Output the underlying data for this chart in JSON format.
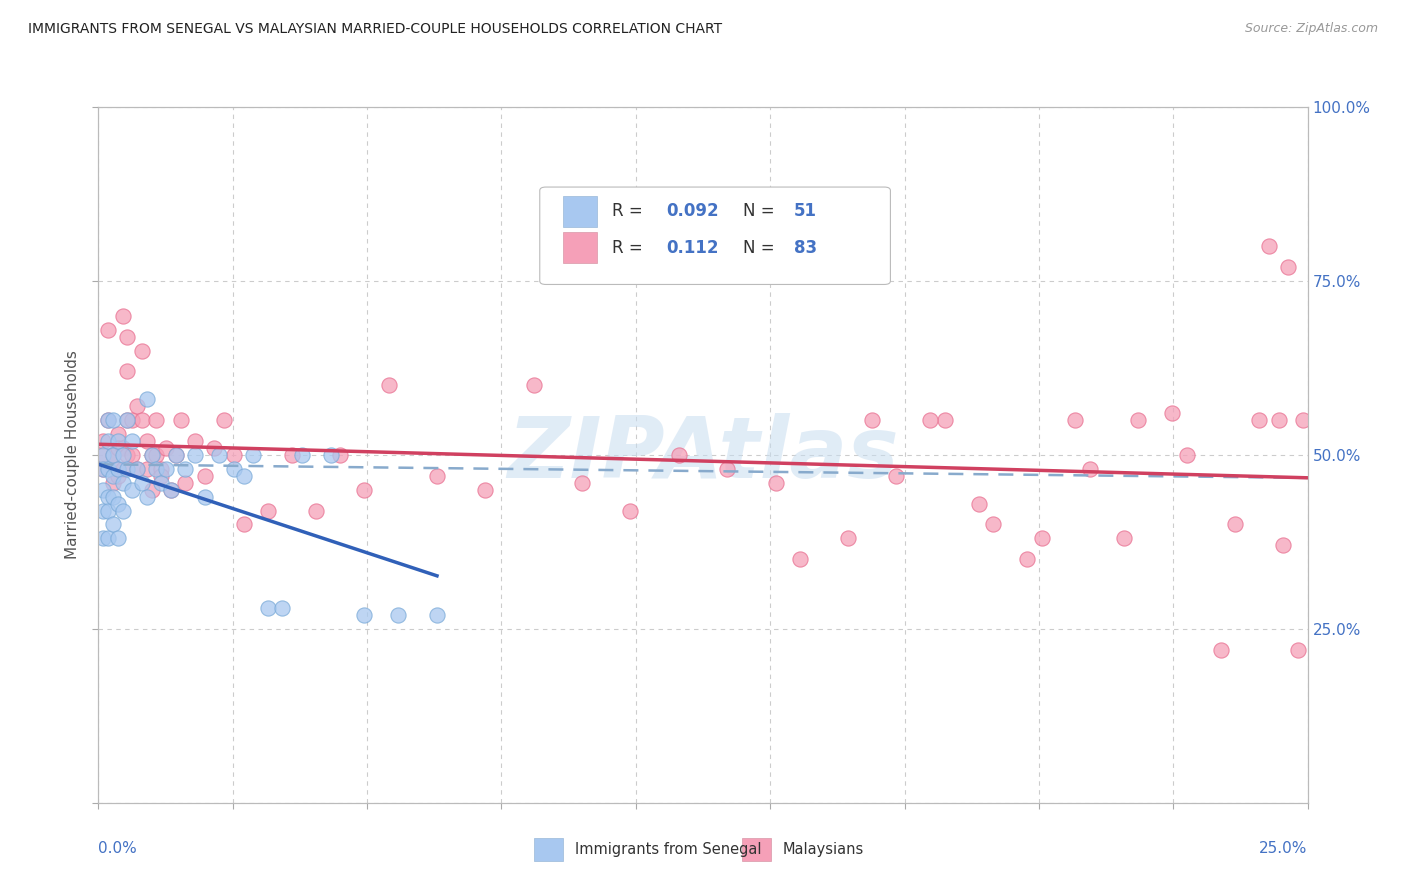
{
  "title": "IMMIGRANTS FROM SENEGAL VS MALAYSIAN MARRIED-COUPLE HOUSEHOLDS CORRELATION CHART",
  "source": "Source: ZipAtlas.com",
  "series1_label": "Immigrants from Senegal",
  "series2_label": "Malaysians",
  "series1_R": "0.092",
  "series1_N": "51",
  "series2_R": "0.112",
  "series2_N": "83",
  "series1_color": "#a8c8f0",
  "series2_color": "#f5a0b8",
  "series1_edge_color": "#7aaad8",
  "series2_edge_color": "#e87090",
  "series1_line_color": "#3060b8",
  "series2_line_color": "#d04060",
  "dashed_line_color": "#88aacc",
  "background_color": "#ffffff",
  "grid_color": "#cccccc",
  "title_color": "#222222",
  "axis_label_color": "#4472c4",
  "legend_R_N_color": "#4472c4",
  "ylabel": "Married-couple Households",
  "xlim": [
    0.0,
    0.25
  ],
  "ylim": [
    0.0,
    1.0
  ],
  "watermark": "ZIPAtlas",
  "series1_x": [
    0.001,
    0.001,
    0.001,
    0.001,
    0.001,
    0.002,
    0.002,
    0.002,
    0.002,
    0.002,
    0.002,
    0.003,
    0.003,
    0.003,
    0.003,
    0.003,
    0.004,
    0.004,
    0.004,
    0.004,
    0.005,
    0.005,
    0.005,
    0.006,
    0.006,
    0.007,
    0.007,
    0.008,
    0.009,
    0.01,
    0.01,
    0.011,
    0.012,
    0.013,
    0.014,
    0.015,
    0.016,
    0.018,
    0.02,
    0.022,
    0.025,
    0.028,
    0.03,
    0.032,
    0.035,
    0.038,
    0.042,
    0.048,
    0.055,
    0.062,
    0.07
  ],
  "series1_y": [
    0.45,
    0.5,
    0.48,
    0.42,
    0.38,
    0.52,
    0.48,
    0.44,
    0.42,
    0.38,
    0.55,
    0.5,
    0.47,
    0.44,
    0.4,
    0.55,
    0.52,
    0.48,
    0.43,
    0.38,
    0.5,
    0.46,
    0.42,
    0.55,
    0.48,
    0.52,
    0.45,
    0.48,
    0.46,
    0.58,
    0.44,
    0.5,
    0.48,
    0.46,
    0.48,
    0.45,
    0.5,
    0.48,
    0.5,
    0.44,
    0.5,
    0.48,
    0.47,
    0.5,
    0.28,
    0.28,
    0.5,
    0.5,
    0.27,
    0.27,
    0.27
  ],
  "series2_x": [
    0.001,
    0.001,
    0.001,
    0.002,
    0.002,
    0.003,
    0.003,
    0.003,
    0.004,
    0.004,
    0.004,
    0.004,
    0.005,
    0.005,
    0.005,
    0.006,
    0.006,
    0.006,
    0.006,
    0.007,
    0.007,
    0.008,
    0.008,
    0.009,
    0.009,
    0.01,
    0.01,
    0.011,
    0.011,
    0.012,
    0.012,
    0.013,
    0.013,
    0.014,
    0.015,
    0.016,
    0.017,
    0.018,
    0.02,
    0.022,
    0.024,
    0.026,
    0.028,
    0.03,
    0.035,
    0.04,
    0.045,
    0.05,
    0.055,
    0.06,
    0.07,
    0.08,
    0.09,
    0.1,
    0.11,
    0.12,
    0.13,
    0.14,
    0.155,
    0.165,
    0.175,
    0.185,
    0.195,
    0.205,
    0.215,
    0.225,
    0.235,
    0.24,
    0.245,
    0.248,
    0.145,
    0.16,
    0.172,
    0.182,
    0.192,
    0.202,
    0.212,
    0.222,
    0.232,
    0.242,
    0.244,
    0.246,
    0.249
  ],
  "series2_y": [
    0.5,
    0.52,
    0.48,
    0.68,
    0.55,
    0.5,
    0.46,
    0.5,
    0.53,
    0.47,
    0.51,
    0.48,
    0.51,
    0.48,
    0.7,
    0.62,
    0.55,
    0.5,
    0.67,
    0.55,
    0.5,
    0.48,
    0.57,
    0.55,
    0.65,
    0.52,
    0.48,
    0.5,
    0.45,
    0.55,
    0.5,
    0.48,
    0.47,
    0.51,
    0.45,
    0.5,
    0.55,
    0.46,
    0.52,
    0.47,
    0.51,
    0.55,
    0.5,
    0.4,
    0.42,
    0.5,
    0.42,
    0.5,
    0.45,
    0.6,
    0.47,
    0.45,
    0.6,
    0.46,
    0.42,
    0.5,
    0.48,
    0.46,
    0.38,
    0.47,
    0.55,
    0.4,
    0.38,
    0.48,
    0.55,
    0.5,
    0.4,
    0.55,
    0.37,
    0.22,
    0.35,
    0.55,
    0.55,
    0.43,
    0.35,
    0.55,
    0.38,
    0.56,
    0.22,
    0.8,
    0.55,
    0.77,
    0.55
  ]
}
